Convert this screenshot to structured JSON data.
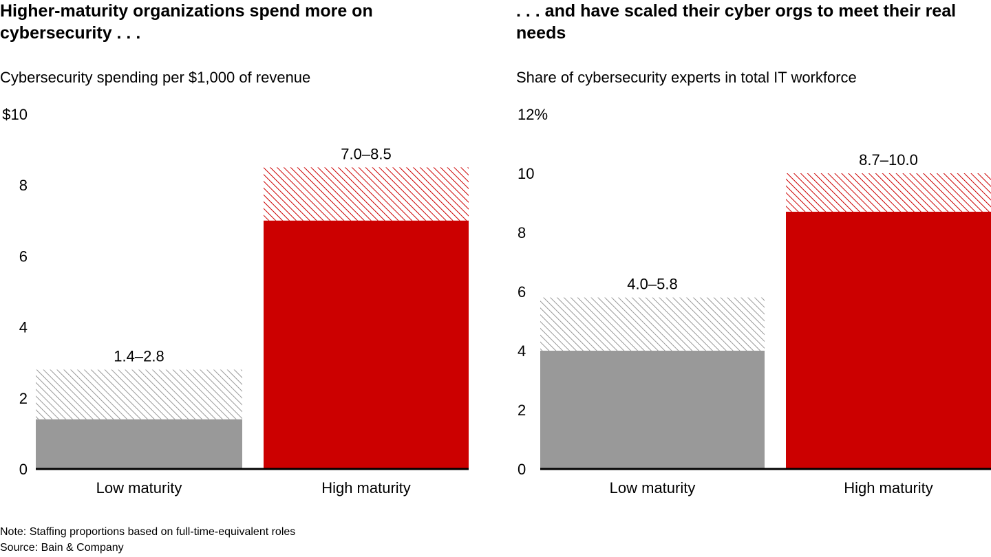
{
  "colors": {
    "low": "#999999",
    "high": "#cc0000",
    "axis": "#000000"
  },
  "chart_data": [
    {
      "type": "bar",
      "stacked_range": true,
      "title": "Higher-maturity organizations spend more on cybersecurity . . .",
      "ylabel": "Cybersecurity spending per $1,000 of revenue",
      "ylim": [
        0,
        10
      ],
      "yticks": [
        "0",
        "2",
        "4",
        "6",
        "8",
        "$10"
      ],
      "categories": [
        "Low maturity",
        "High maturity"
      ],
      "ranges": [
        {
          "low": 1.4,
          "high": 2.8,
          "label": "1.4–2.8"
        },
        {
          "low": 7.0,
          "high": 8.5,
          "label": "7.0–8.5"
        }
      ],
      "grid": false
    },
    {
      "type": "bar",
      "stacked_range": true,
      "title": ". . . and have scaled their cyber orgs to meet their real needs",
      "ylabel": "Share of cybersecurity experts in total IT workforce",
      "ylim": [
        0,
        12
      ],
      "yticks": [
        "0",
        "2",
        "4",
        "6",
        "8",
        "10",
        "12%"
      ],
      "categories": [
        "Low maturity",
        "High maturity"
      ],
      "ranges": [
        {
          "low": 4.0,
          "high": 5.8,
          "label": "4.0–5.8"
        },
        {
          "low": 8.7,
          "high": 10.0,
          "label": "8.7–10.0"
        }
      ],
      "grid": false
    }
  ],
  "footer": {
    "note": "Note: Staffing proportions based on full-time-equivalent roles",
    "source": "Source: Bain & Company"
  }
}
